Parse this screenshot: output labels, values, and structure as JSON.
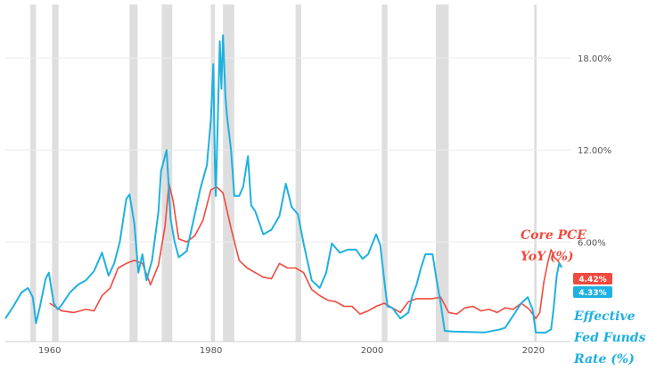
{
  "chart_data": {
    "type": "line",
    "x_range": [
      1954.5,
      2024.6
    ],
    "y_range": [
      -0.5,
      21.5
    ],
    "x_ticks": [
      {
        "value": 1960,
        "label": "1960"
      },
      {
        "value": 1980,
        "label": "1980"
      },
      {
        "value": 2000,
        "label": "2000"
      },
      {
        "value": 2020,
        "label": "2020"
      }
    ],
    "y_ticks": [
      {
        "value": 6,
        "label": "6.00%"
      },
      {
        "value": 12,
        "label": "12.00%"
      },
      {
        "value": 18,
        "label": "18.00%"
      }
    ],
    "grid": "horizontal",
    "recessions": [
      [
        1957.6,
        1958.3
      ],
      [
        1960.3,
        1961.1
      ],
      [
        1969.9,
        1970.9
      ],
      [
        1973.9,
        1975.2
      ],
      [
        1980.0,
        1980.5
      ],
      [
        1981.5,
        1982.9
      ],
      [
        1990.5,
        1991.2
      ],
      [
        2001.2,
        2001.9
      ],
      [
        2007.9,
        2009.5
      ],
      [
        2020.1,
        2020.4
      ]
    ],
    "series": [
      {
        "name": "Core PCE YoY (%)",
        "color": "#f04a3f",
        "annotation": [
          "Core PCE",
          "YoY (%)"
        ],
        "last_value_label": "4.42%",
        "points": [
          [
            1960.0,
            2.0
          ],
          [
            1961.5,
            1.5
          ],
          [
            1963.0,
            1.4
          ],
          [
            1964.5,
            1.6
          ],
          [
            1965.5,
            1.5
          ],
          [
            1966.5,
            2.5
          ],
          [
            1967.5,
            3.0
          ],
          [
            1968.5,
            4.3
          ],
          [
            1969.5,
            4.6
          ],
          [
            1970.5,
            4.8
          ],
          [
            1971.5,
            4.6
          ],
          [
            1972.5,
            3.2
          ],
          [
            1973.5,
            4.5
          ],
          [
            1974.3,
            7.0
          ],
          [
            1974.8,
            9.8
          ],
          [
            1975.3,
            8.7
          ],
          [
            1976.0,
            6.2
          ],
          [
            1977.0,
            6.0
          ],
          [
            1978.0,
            6.4
          ],
          [
            1979.0,
            7.4
          ],
          [
            1980.0,
            9.4
          ],
          [
            1980.7,
            9.6
          ],
          [
            1981.5,
            9.2
          ],
          [
            1982.5,
            6.9
          ],
          [
            1983.5,
            4.8
          ],
          [
            1984.5,
            4.3
          ],
          [
            1985.5,
            4.0
          ],
          [
            1986.5,
            3.7
          ],
          [
            1987.5,
            3.6
          ],
          [
            1988.5,
            4.6
          ],
          [
            1989.5,
            4.3
          ],
          [
            1990.5,
            4.3
          ],
          [
            1991.5,
            4.0
          ],
          [
            1992.5,
            2.9
          ],
          [
            1993.5,
            2.5
          ],
          [
            1994.5,
            2.2
          ],
          [
            1995.5,
            2.1
          ],
          [
            1996.5,
            1.8
          ],
          [
            1997.5,
            1.8
          ],
          [
            1998.5,
            1.3
          ],
          [
            1999.5,
            1.5
          ],
          [
            2000.5,
            1.8
          ],
          [
            2001.5,
            2.0
          ],
          [
            2002.5,
            1.7
          ],
          [
            2003.5,
            1.4
          ],
          [
            2004.5,
            2.1
          ],
          [
            2005.5,
            2.3
          ],
          [
            2006.5,
            2.3
          ],
          [
            2007.5,
            2.3
          ],
          [
            2008.5,
            2.4
          ],
          [
            2009.5,
            1.4
          ],
          [
            2010.5,
            1.3
          ],
          [
            2011.5,
            1.7
          ],
          [
            2012.5,
            1.8
          ],
          [
            2013.5,
            1.5
          ],
          [
            2014.5,
            1.6
          ],
          [
            2015.5,
            1.4
          ],
          [
            2016.5,
            1.7
          ],
          [
            2017.5,
            1.6
          ],
          [
            2018.5,
            2.0
          ],
          [
            2019.5,
            1.6
          ],
          [
            2020.3,
            1.0
          ],
          [
            2020.8,
            1.4
          ],
          [
            2021.3,
            3.4
          ],
          [
            2021.8,
            4.7
          ],
          [
            2022.2,
            5.5
          ],
          [
            2022.6,
            5.0
          ],
          [
            2023.0,
            4.8
          ],
          [
            2023.5,
            4.4
          ]
        ]
      },
      {
        "name": "Effective Fed Funds Rate (%)",
        "color": "#1fb1e0",
        "annotation": [
          "Effective",
          "Fed Funds",
          "Rate (%)"
        ],
        "last_value_label": "4.33%",
        "points": [
          [
            1954.5,
            1.0
          ],
          [
            1955.5,
            1.8
          ],
          [
            1956.5,
            2.7
          ],
          [
            1957.3,
            3.0
          ],
          [
            1957.9,
            2.4
          ],
          [
            1958.3,
            0.7
          ],
          [
            1958.8,
            1.8
          ],
          [
            1959.5,
            3.6
          ],
          [
            1959.9,
            4.0
          ],
          [
            1960.5,
            2.0
          ],
          [
            1961.0,
            1.6
          ],
          [
            1961.5,
            1.9
          ],
          [
            1962.5,
            2.7
          ],
          [
            1963.5,
            3.2
          ],
          [
            1964.5,
            3.5
          ],
          [
            1965.5,
            4.1
          ],
          [
            1966.5,
            5.3
          ],
          [
            1967.3,
            3.8
          ],
          [
            1968.0,
            4.6
          ],
          [
            1968.7,
            6.0
          ],
          [
            1969.5,
            8.8
          ],
          [
            1969.9,
            9.1
          ],
          [
            1970.5,
            7.2
          ],
          [
            1971.0,
            4.0
          ],
          [
            1971.5,
            5.2
          ],
          [
            1972.0,
            3.5
          ],
          [
            1972.7,
            4.8
          ],
          [
            1973.5,
            8.0
          ],
          [
            1973.8,
            10.6
          ],
          [
            1974.5,
            12.0
          ],
          [
            1975.0,
            7.5
          ],
          [
            1975.5,
            6.0
          ],
          [
            1976.0,
            5.0
          ],
          [
            1977.0,
            5.4
          ],
          [
            1978.0,
            7.8
          ],
          [
            1978.7,
            9.5
          ],
          [
            1979.5,
            11.0
          ],
          [
            1980.0,
            14.0
          ],
          [
            1980.3,
            17.6
          ],
          [
            1980.5,
            11.0
          ],
          [
            1980.6,
            9.0
          ],
          [
            1980.9,
            15.0
          ],
          [
            1981.1,
            19.1
          ],
          [
            1981.3,
            16.0
          ],
          [
            1981.5,
            19.5
          ],
          [
            1981.8,
            15.5
          ],
          [
            1982.0,
            14.2
          ],
          [
            1982.5,
            12.0
          ],
          [
            1982.9,
            9.0
          ],
          [
            1983.5,
            9.0
          ],
          [
            1984.0,
            9.6
          ],
          [
            1984.6,
            11.6
          ],
          [
            1985.0,
            8.4
          ],
          [
            1985.5,
            8.0
          ],
          [
            1986.5,
            6.5
          ],
          [
            1987.5,
            6.8
          ],
          [
            1988.5,
            7.7
          ],
          [
            1989.3,
            9.8
          ],
          [
            1990.0,
            8.3
          ],
          [
            1990.8,
            7.8
          ],
          [
            1991.5,
            5.9
          ],
          [
            1992.5,
            3.5
          ],
          [
            1993.5,
            3.0
          ],
          [
            1994.3,
            4.0
          ],
          [
            1995.0,
            5.9
          ],
          [
            1996.0,
            5.3
          ],
          [
            1997.0,
            5.5
          ],
          [
            1998.0,
            5.5
          ],
          [
            1998.8,
            4.9
          ],
          [
            1999.5,
            5.2
          ],
          [
            2000.5,
            6.5
          ],
          [
            2001.0,
            5.8
          ],
          [
            2001.5,
            3.5
          ],
          [
            2001.9,
            1.8
          ],
          [
            2002.5,
            1.7
          ],
          [
            2003.5,
            1.0
          ],
          [
            2004.5,
            1.4
          ],
          [
            2005.0,
            2.5
          ],
          [
            2005.5,
            3.2
          ],
          [
            2006.0,
            4.2
          ],
          [
            2006.6,
            5.2
          ],
          [
            2007.5,
            5.2
          ],
          [
            2008.0,
            3.5
          ],
          [
            2008.5,
            2.0
          ],
          [
            2009.0,
            0.2
          ],
          [
            2010.0,
            0.15
          ],
          [
            2012.0,
            0.12
          ],
          [
            2014.0,
            0.1
          ],
          [
            2015.9,
            0.3
          ],
          [
            2016.5,
            0.4
          ],
          [
            2017.5,
            1.2
          ],
          [
            2018.5,
            2.0
          ],
          [
            2019.3,
            2.4
          ],
          [
            2019.9,
            1.6
          ],
          [
            2020.3,
            0.1
          ],
          [
            2021.5,
            0.08
          ],
          [
            2022.2,
            0.3
          ],
          [
            2022.5,
            1.6
          ],
          [
            2022.9,
            3.8
          ],
          [
            2023.2,
            4.6
          ],
          [
            2023.5,
            4.33
          ]
        ]
      }
    ]
  }
}
